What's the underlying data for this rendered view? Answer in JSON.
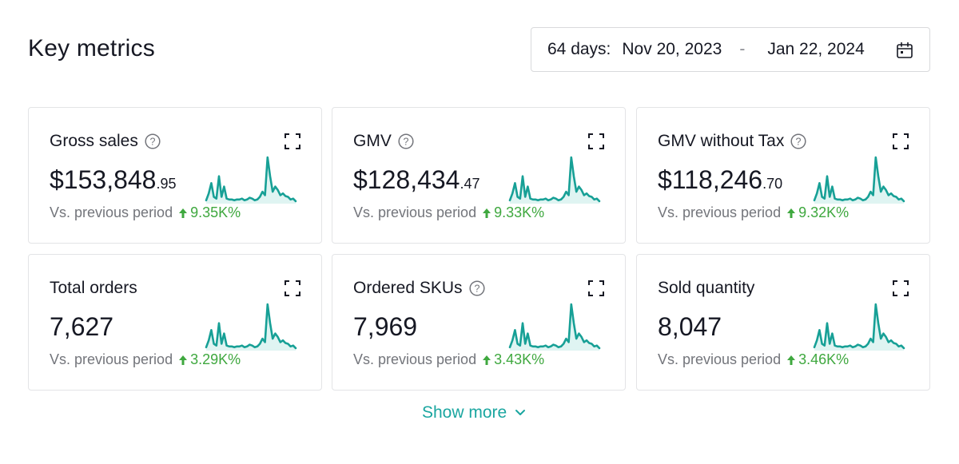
{
  "header": {
    "title": "Key metrics"
  },
  "date_range": {
    "days_label": "64 days:",
    "start": "Nov 20, 2023",
    "separator": "-",
    "end": "Jan 22, 2024",
    "icon": "calendar-icon"
  },
  "colors": {
    "accent": "#1aa6a0",
    "sparkline_stroke": "#17a096",
    "sparkline_fill": "#dff4f2",
    "positive": "#3fa83f",
    "muted": "#73757b"
  },
  "metrics": [
    {
      "title": "Gross sales",
      "has_help": true,
      "value_main": "$153,848",
      "value_cents": ".95",
      "compare_label": "Vs. previous period",
      "change": "9.35K%"
    },
    {
      "title": "GMV",
      "has_help": true,
      "value_main": "$128,434",
      "value_cents": ".47",
      "compare_label": "Vs. previous period",
      "change": "9.33K%"
    },
    {
      "title": "GMV without Tax",
      "has_help": true,
      "value_main": "$118,246",
      "value_cents": ".70",
      "compare_label": "Vs. previous period",
      "change": "9.32K%"
    },
    {
      "title": "Total orders",
      "has_help": false,
      "value_main": "7,627",
      "value_cents": "",
      "compare_label": "Vs. previous period",
      "change": "3.29K%"
    },
    {
      "title": "Ordered SKUs",
      "has_help": true,
      "value_main": "7,969",
      "value_cents": "",
      "compare_label": "Vs. previous period",
      "change": "3.43K%"
    },
    {
      "title": "Sold quantity",
      "has_help": false,
      "value_main": "8,047",
      "value_cents": "",
      "compare_label": "Vs. previous period",
      "change": "3.46K%"
    }
  ],
  "sparkline": {
    "values": [
      2,
      10,
      22,
      6,
      4,
      30,
      6,
      18,
      4,
      3,
      3,
      2,
      3,
      3,
      4,
      2,
      3,
      5,
      4,
      2,
      3,
      6,
      12,
      8,
      52,
      30,
      12,
      18,
      14,
      8,
      10,
      7,
      6,
      3,
      4,
      1
    ]
  },
  "footer": {
    "show_more_label": "Show more"
  }
}
